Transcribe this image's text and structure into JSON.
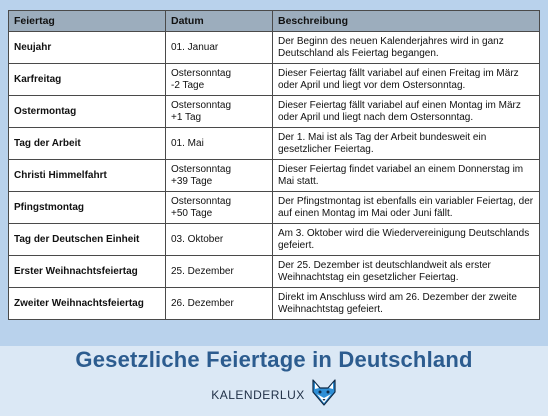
{
  "table": {
    "headers": [
      "Feiertag",
      "Datum",
      "Beschreibung"
    ],
    "rows": [
      {
        "name": "Neujahr",
        "date": "01. Januar",
        "desc": "Der Beginn des neuen Kalenderjahres wird in ganz Deutschland als Feiertag begangen."
      },
      {
        "name": "Karfreitag",
        "date": "Ostersonntag\n-2 Tage",
        "desc": "Dieser Feiertag fällt variabel auf einen Freitag im März oder April und liegt vor dem Ostersonntag."
      },
      {
        "name": "Ostermontag",
        "date": "Ostersonntag\n+1 Tag",
        "desc": "Dieser Feiertag fällt variabel auf einen Montag im März oder April und liegt nach dem Ostersonntag."
      },
      {
        "name": "Tag der Arbeit",
        "date": "01. Mai",
        "desc": "Der 1. Mai ist als Tag der Arbeit bundesweit ein gesetzlicher Feiertag."
      },
      {
        "name": "Christi Himmelfahrt",
        "date": "Ostersonntag\n+39 Tage",
        "desc": "Dieser Feiertag findet variabel an einem Donnerstag im Mai statt."
      },
      {
        "name": "Pfingstmontag",
        "date": "Ostersonntag\n+50 Tage",
        "desc": "Der Pfingstmontag ist ebenfalls ein variabler Feiertag, der auf einen Montag im Mai oder Juni fällt."
      },
      {
        "name": "Tag der Deutschen Einheit",
        "date": "03. Oktober",
        "desc": "Am 3. Oktober wird die Wiedervereinigung Deutschlands gefeiert."
      },
      {
        "name": "Erster Weihnachtsfeiertag",
        "date": "25. Dezember",
        "desc": "Der 25. Dezember ist deutschlandweit als erster Weihnachtstag ein gesetzlicher Feiertag."
      },
      {
        "name": "Zweiter Weihnachtsfeiertag",
        "date": "26. Dezember",
        "desc": "Direkt im Anschluss wird am 26. Dezember der zweite Weihnachtstag gefeiert."
      }
    ]
  },
  "title": "Gesetzliche Feiertage in Deutschland",
  "brand": {
    "name": "KALENDERLUX",
    "logo_icon": "fox-icon"
  },
  "colors": {
    "header_bg": "#9cadbd",
    "top_bg": "#b9d2ec",
    "bottom_bg": "#dbe8f5",
    "title": "#2c5c8f",
    "logo": "#2e8fd6"
  }
}
